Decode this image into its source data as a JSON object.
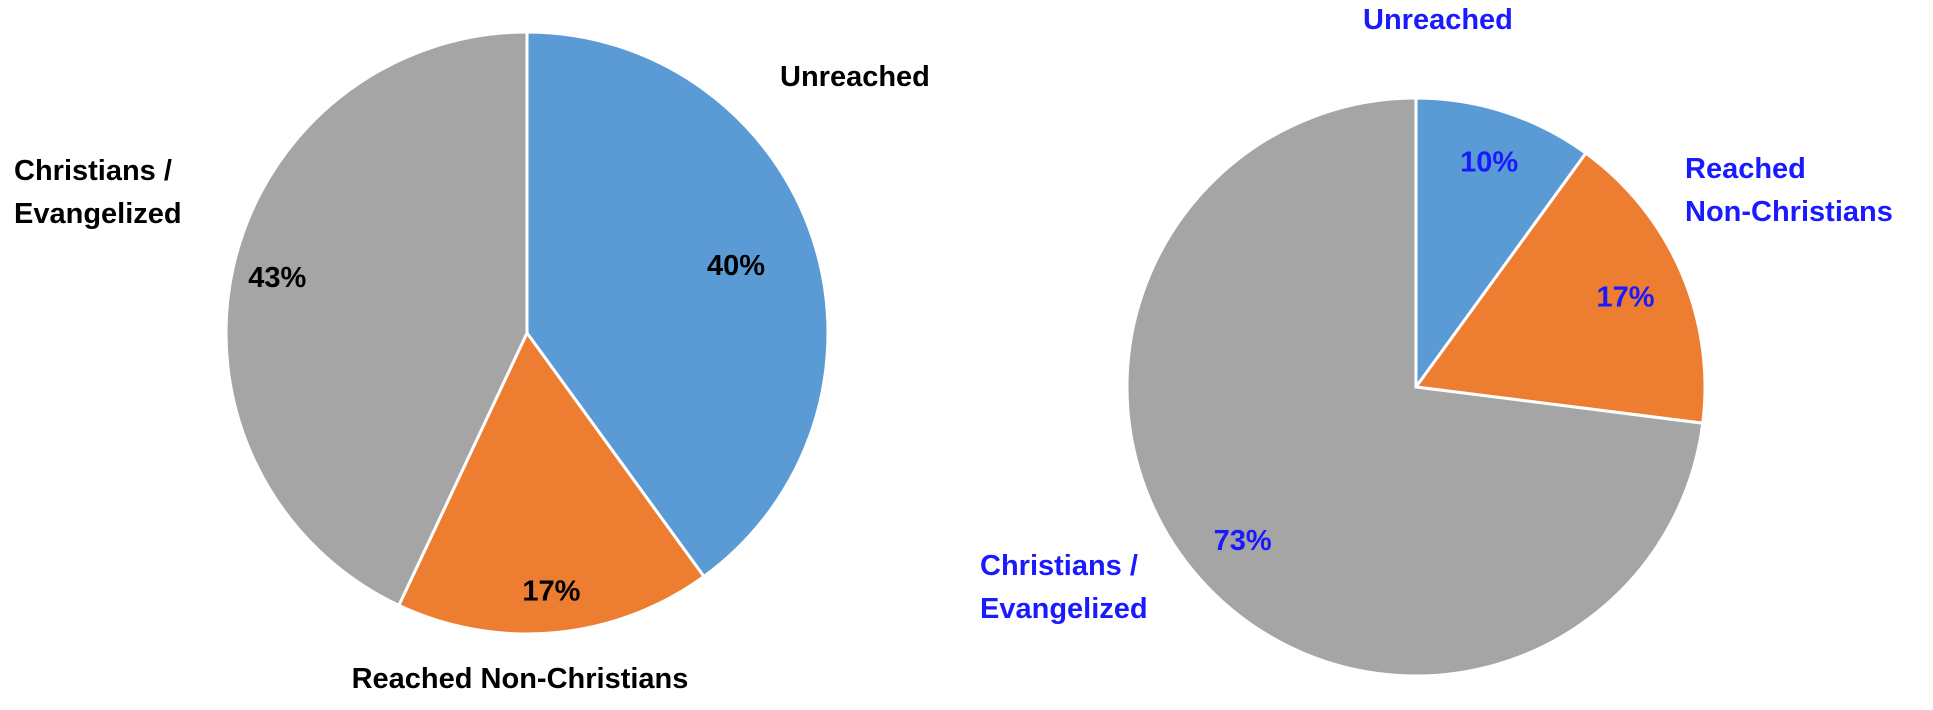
{
  "chart_data": [
    {
      "type": "pie",
      "categories": [
        "Unreached",
        "Reached Non-Christians",
        "Christians / Evangelized"
      ],
      "values": [
        40,
        17,
        43
      ],
      "value_labels": [
        "40%",
        "17%",
        "43%"
      ],
      "colors": [
        "#5b9bd5",
        "#ed7d31",
        "#a5a5a5"
      ],
      "label_color": "#000000",
      "category_labels": [
        [
          "Unreached"
        ],
        [
          "Reached Non-Christians"
        ],
        [
          "Christians /",
          "Evangelized"
        ]
      ]
    },
    {
      "type": "pie",
      "categories": [
        "Unreached",
        "Reached Non-Christians",
        "Christians / Evangelized"
      ],
      "values": [
        10,
        17,
        73
      ],
      "value_labels": [
        "10%",
        "17%",
        "73%"
      ],
      "colors": [
        "#5b9bd5",
        "#ed7d31",
        "#a5a5a5"
      ],
      "label_color": "#1a1aff",
      "category_labels": [
        [
          "Unreached"
        ],
        [
          "Reached",
          "Non-Christians"
        ],
        [
          "Christians /",
          "Evangelized"
        ]
      ]
    }
  ]
}
